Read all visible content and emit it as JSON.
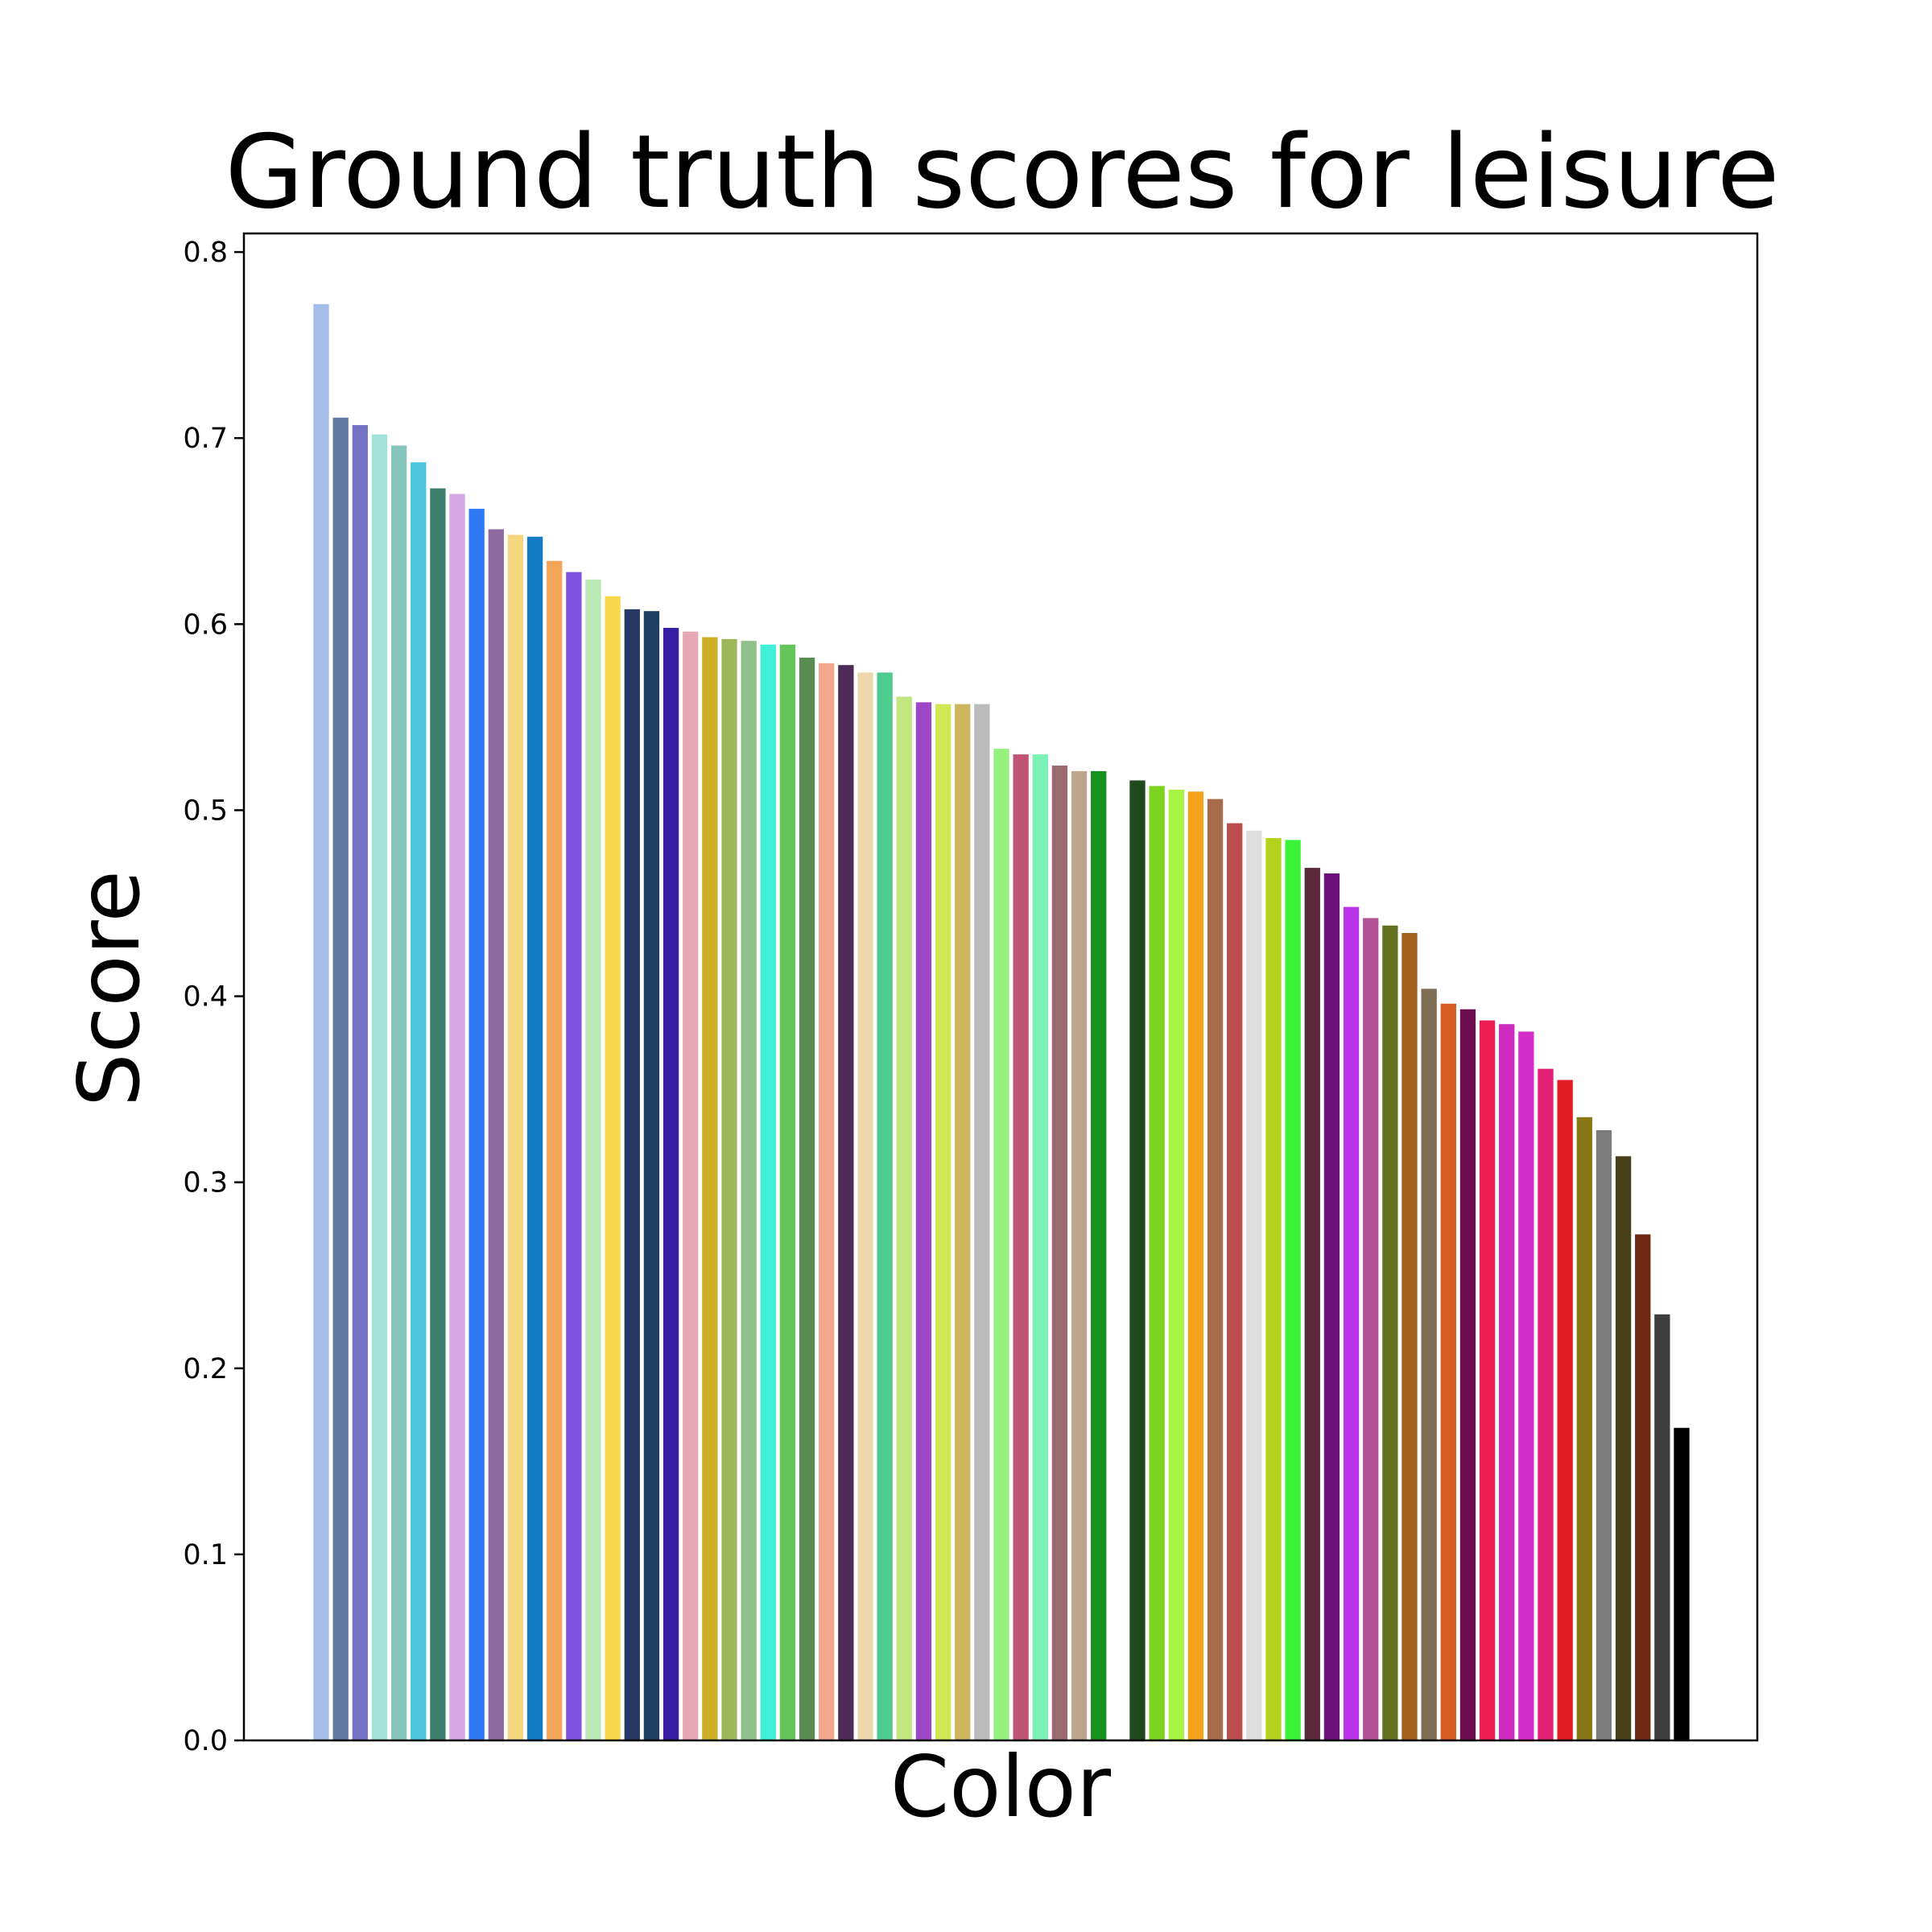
{
  "chart_data": {
    "type": "bar",
    "title": "Ground truth scores for leisure",
    "xlabel": "Color",
    "ylabel": "Score",
    "ylim": [
      0,
      0.81
    ],
    "yticks": [
      0.0,
      0.1,
      0.2,
      0.3,
      0.4,
      0.5,
      0.6,
      0.7,
      0.8
    ],
    "ytick_labels": [
      "0.0",
      "0.1",
      "0.2",
      "0.3",
      "0.4",
      "0.5",
      "0.6",
      "0.7",
      "0.8"
    ],
    "xticks_visible": false,
    "grid": false,
    "legend": "none",
    "bars": [
      {
        "value": 0.772,
        "color": "#a3bde8"
      },
      {
        "value": 0.711,
        "color": "#637aa2"
      },
      {
        "value": 0.707,
        "color": "#7572c6"
      },
      {
        "value": 0.702,
        "color": "#a2e3d9"
      },
      {
        "value": 0.696,
        "color": "#86c5bb"
      },
      {
        "value": 0.687,
        "color": "#4cc3df"
      },
      {
        "value": 0.673,
        "color": "#3f7f6e"
      },
      {
        "value": 0.67,
        "color": "#d3a8e4"
      },
      {
        "value": 0.662,
        "color": "#2f79f5"
      },
      {
        "value": 0.651,
        "color": "#8f6aa0"
      },
      {
        "value": 0.648,
        "color": "#f3d77e"
      },
      {
        "value": 0.647,
        "color": "#127bc6"
      },
      {
        "value": 0.634,
        "color": "#f3a55a"
      },
      {
        "value": 0.628,
        "color": "#7e54e1"
      },
      {
        "value": 0.624,
        "color": "#b9e8b2"
      },
      {
        "value": 0.615,
        "color": "#fad84b"
      },
      {
        "value": 0.608,
        "color": "#273865"
      },
      {
        "value": 0.607,
        "color": "#1f4061"
      },
      {
        "value": 0.598,
        "color": "#371ea3"
      },
      {
        "value": 0.596,
        "color": "#e7a8b6"
      },
      {
        "value": 0.593,
        "color": "#cfaf26"
      },
      {
        "value": 0.592,
        "color": "#9eb75a"
      },
      {
        "value": 0.591,
        "color": "#92c08c"
      },
      {
        "value": 0.589,
        "color": "#40f0d8"
      },
      {
        "value": 0.589,
        "color": "#63c55a"
      },
      {
        "value": 0.582,
        "color": "#5a8c52"
      },
      {
        "value": 0.579,
        "color": "#f1a88c"
      },
      {
        "value": 0.578,
        "color": "#4e2a58"
      },
      {
        "value": 0.574,
        "color": "#ecd8ac"
      },
      {
        "value": 0.574,
        "color": "#4ecb8e"
      },
      {
        "value": 0.561,
        "color": "#c2e67e"
      },
      {
        "value": 0.558,
        "color": "#9c47c8"
      },
      {
        "value": 0.557,
        "color": "#d1e653"
      },
      {
        "value": 0.557,
        "color": "#cdb65d"
      },
      {
        "value": 0.557,
        "color": "#bcbcbc"
      },
      {
        "value": 0.533,
        "color": "#95f07c"
      },
      {
        "value": 0.53,
        "color": "#c05474"
      },
      {
        "value": 0.53,
        "color": "#7bf2b4"
      },
      {
        "value": 0.524,
        "color": "#9a6a70"
      },
      {
        "value": 0.521,
        "color": "#bea68d"
      },
      {
        "value": 0.521,
        "color": "#17921e"
      },
      {
        "value": 0.0,
        "color": "#ffffff"
      },
      {
        "value": 0.516,
        "color": "#1f4a1c"
      },
      {
        "value": 0.513,
        "color": "#7ed321"
      },
      {
        "value": 0.511,
        "color": "#a8f444"
      },
      {
        "value": 0.51,
        "color": "#f5a21d"
      },
      {
        "value": 0.506,
        "color": "#a66b4c"
      },
      {
        "value": 0.493,
        "color": "#bb4e4c"
      },
      {
        "value": 0.489,
        "color": "#dedede"
      },
      {
        "value": 0.485,
        "color": "#b4d11d"
      },
      {
        "value": 0.484,
        "color": "#3bf43a"
      },
      {
        "value": 0.469,
        "color": "#5a2a3c"
      },
      {
        "value": 0.466,
        "color": "#6a117a"
      },
      {
        "value": 0.448,
        "color": "#b934e8"
      },
      {
        "value": 0.442,
        "color": "#b35396"
      },
      {
        "value": 0.438,
        "color": "#64721f"
      },
      {
        "value": 0.434,
        "color": "#a3621c"
      },
      {
        "value": 0.404,
        "color": "#7e6f54"
      },
      {
        "value": 0.396,
        "color": "#d35d23"
      },
      {
        "value": 0.393,
        "color": "#6e0e52"
      },
      {
        "value": 0.387,
        "color": "#ed1f55"
      },
      {
        "value": 0.385,
        "color": "#cc2bbd"
      },
      {
        "value": 0.381,
        "color": "#d52fcb"
      },
      {
        "value": 0.361,
        "color": "#e22078"
      },
      {
        "value": 0.355,
        "color": "#e21c24"
      },
      {
        "value": 0.335,
        "color": "#8a7715"
      },
      {
        "value": 0.328,
        "color": "#7c7c7c"
      },
      {
        "value": 0.314,
        "color": "#45401a"
      },
      {
        "value": 0.272,
        "color": "#6e2814"
      },
      {
        "value": 0.229,
        "color": "#3d3d3d"
      },
      {
        "value": 0.168,
        "color": "#000000"
      }
    ]
  }
}
